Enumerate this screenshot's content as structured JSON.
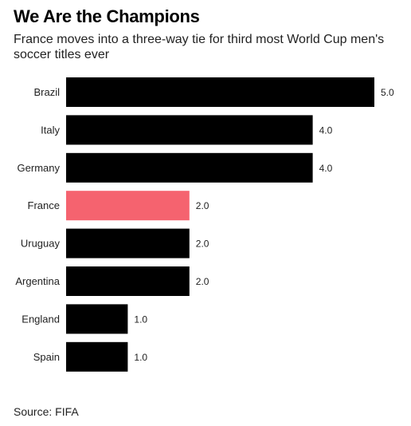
{
  "title": "We Are the Champions",
  "subtitle": "France moves into a three-way tie for third most World Cup men's soccer titles ever",
  "source": "Source: FIFA",
  "colors": {
    "default_bar": "#000000",
    "highlight_bar": "#f5636f",
    "label_text": "#222222"
  },
  "chart_data": {
    "type": "bar",
    "orientation": "horizontal",
    "categories": [
      "Brazil",
      "Italy",
      "Germany",
      "France",
      "Uruguay",
      "Argentina",
      "England",
      "Spain"
    ],
    "values": [
      5.0,
      4.0,
      4.0,
      2.0,
      2.0,
      2.0,
      1.0,
      1.0
    ],
    "value_labels": [
      "5.0",
      "4.0",
      "4.0",
      "2.0",
      "2.0",
      "2.0",
      "1.0",
      "1.0"
    ],
    "highlight": "France",
    "xlim": [
      0,
      5
    ],
    "grid": false,
    "legend": "none"
  }
}
